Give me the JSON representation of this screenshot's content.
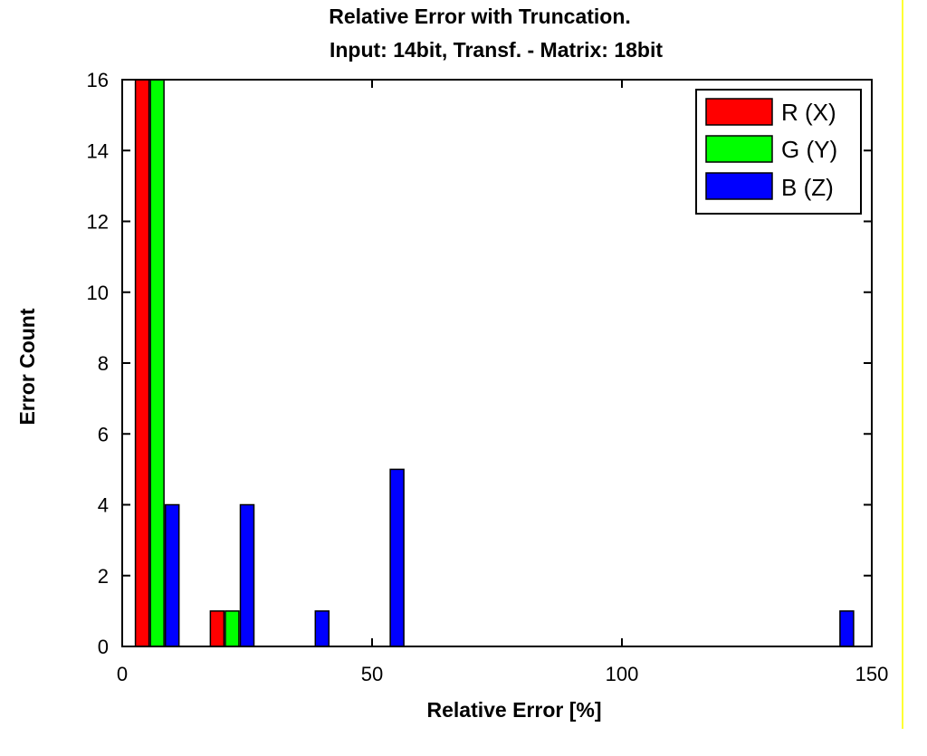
{
  "chart_data": {
    "type": "bar",
    "title": [
      "Relative Error with Truncation.",
      "Input: 14bit, Transf. - Matrix: 18bit"
    ],
    "xlabel": "Relative Error [%]",
    "ylabel": "Error Count",
    "xlim": [
      0,
      150
    ],
    "ylim": [
      0,
      16
    ],
    "xticks": [
      "0",
      "50",
      "100",
      "150"
    ],
    "yticks": [
      "0",
      "2",
      "4",
      "6",
      "8",
      "10",
      "12",
      "14",
      "16"
    ],
    "grid": false,
    "legend_placement": "top-right",
    "series": [
      {
        "name": "R (X)",
        "color": "#ff0000",
        "points": [
          {
            "x": 4,
            "y": 16
          },
          {
            "x": 19,
            "y": 1
          }
        ]
      },
      {
        "name": "G (Y)",
        "color": "#00ff00",
        "points": [
          {
            "x": 7,
            "y": 16
          },
          {
            "x": 22,
            "y": 1
          }
        ]
      },
      {
        "name": "B (Z)",
        "color": "#0000ff",
        "points": [
          {
            "x": 10,
            "y": 4
          },
          {
            "x": 25,
            "y": 4
          },
          {
            "x": 40,
            "y": 1
          },
          {
            "x": 55,
            "y": 5
          },
          {
            "x": 145,
            "y": 1
          }
        ]
      }
    ]
  },
  "colors": {
    "frame_right_line": "#ffff33"
  }
}
